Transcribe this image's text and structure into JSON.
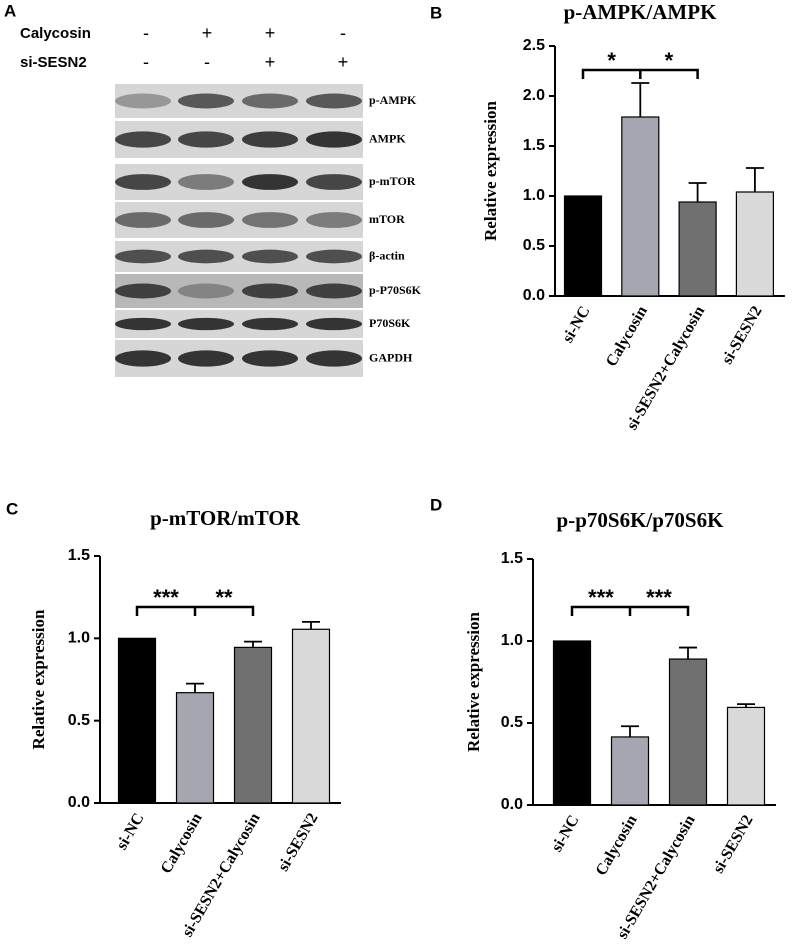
{
  "blot": {
    "panel": "A",
    "treatments": [
      {
        "name": "Calycosin",
        "signs": [
          "-",
          "+",
          "+",
          "-"
        ]
      },
      {
        "name": "si-SESN2",
        "signs": [
          "-",
          "-",
          "+",
          "+"
        ]
      }
    ],
    "rows": [
      "p-AMPK",
      "AMPK",
      "p-mTOR",
      "mTOR",
      "β-actin",
      "p-P70S6K",
      "P70S6K",
      "GAPDH"
    ]
  },
  "chart_data": [
    {
      "type": "bar",
      "panel": "B",
      "title": "p-AMPK/AMPK",
      "y_label": "Relative expression",
      "categories": [
        "si-NC",
        "Calycosin",
        "si-SESN2+Calycosin",
        "si-SESN2"
      ],
      "values": [
        1.0,
        1.79,
        0.94,
        1.04
      ],
      "errors": [
        null,
        0.34,
        0.19,
        0.24
      ],
      "colors": [
        "#000000",
        "#a6a6b0",
        "#707070",
        "#d9d9d9"
      ],
      "ylim": [
        0,
        2.5
      ],
      "yticks": [
        {
          "value": 0,
          "label": "0.0"
        },
        0.5,
        {
          "value": 1,
          "label": "1.0"
        },
        1.5,
        {
          "value": 2,
          "label": "2.0"
        },
        2.5
      ],
      "significance": [
        "*",
        "*"
      ]
    },
    {
      "type": "bar",
      "panel": "C",
      "title": "p-mTOR/mTOR",
      "y_label": "Relative expression",
      "categories": [
        "si-NC",
        "Calycosin",
        "si-SESN2+Calycosin",
        "si-SESN2"
      ],
      "values": [
        1.0,
        0.67,
        0.945,
        1.055
      ],
      "errors": [
        null,
        0.055,
        0.035,
        0.045
      ],
      "colors": [
        "#000000",
        "#a6a6b0",
        "#707070",
        "#d9d9d9"
      ],
      "ylim": [
        0,
        1.5
      ],
      "yticks": [
        {
          "value": 0,
          "label": "0.0"
        },
        0.5,
        {
          "value": 1,
          "label": "1.0"
        },
        1.5
      ],
      "significance": [
        "***",
        "**"
      ]
    },
    {
      "type": "bar",
      "panel": "D",
      "title": "p-p70S6K/p70S6K",
      "y_label": "Relative expression",
      "categories": [
        "si-NC",
        "Calycosin",
        "si-SESN2+Calycosin",
        "si-SESN2"
      ],
      "values": [
        1.0,
        0.415,
        0.89,
        0.595
      ],
      "errors": [
        null,
        0.065,
        0.07,
        0.02
      ],
      "colors": [
        "#000000",
        "#a6a6b0",
        "#707070",
        "#d9d9d9"
      ],
      "ylim": [
        0,
        1.5
      ],
      "yticks": [
        {
          "value": 0,
          "label": "0.0"
        },
        0.5,
        {
          "value": 1,
          "label": "1.0"
        },
        1.5
      ],
      "significance": [
        "***",
        "***"
      ]
    }
  ]
}
